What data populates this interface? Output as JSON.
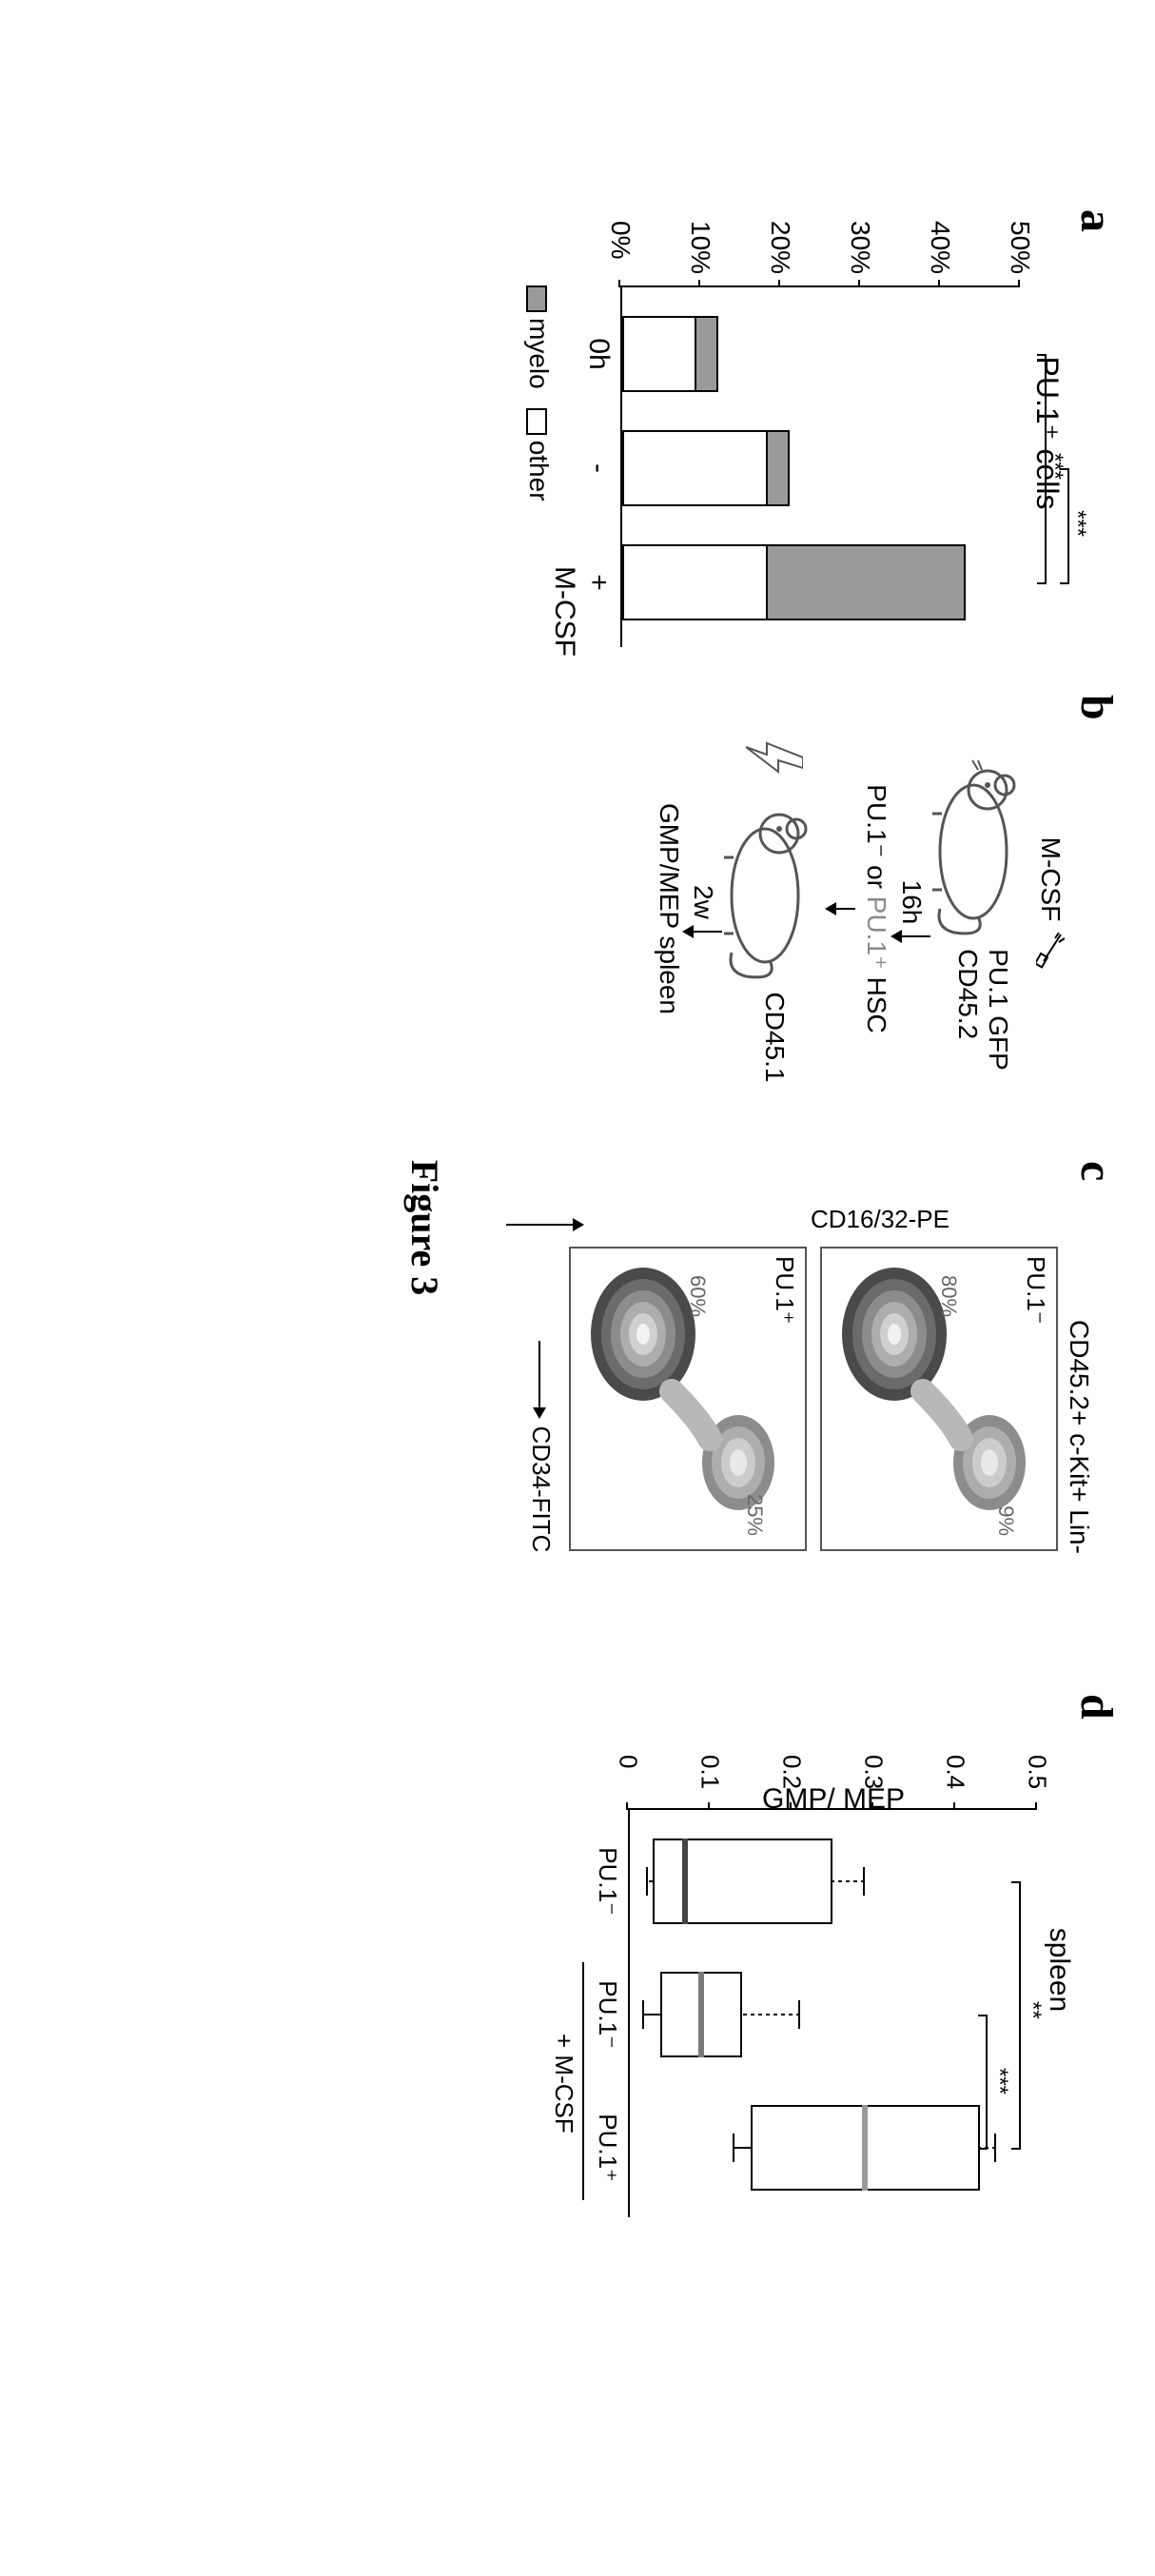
{
  "caption": "Figure 3",
  "panels": {
    "a": {
      "letter": "a",
      "title": "PU.1⁺ cells",
      "y_ticks": [
        "0%",
        "10%",
        "20%",
        "30%",
        "40%",
        "50%"
      ],
      "y_max_pct": 50,
      "bars": [
        {
          "x_label": "0h",
          "myelo_pct": 3,
          "other_pct": 9
        },
        {
          "x_label": "-",
          "myelo_pct": 3,
          "other_pct": 18
        },
        {
          "x_label": "+",
          "myelo_pct": 25,
          "other_pct": 18
        }
      ],
      "x_axis_label": "M-CSF",
      "sig": [
        {
          "from": 0,
          "to": 2,
          "text": "***"
        },
        {
          "from": 1,
          "to": 2,
          "text": "***"
        }
      ],
      "legend": [
        {
          "label": "myelo",
          "color": "#9a9a9a"
        },
        {
          "label": "other",
          "color": "#ffffff"
        }
      ]
    },
    "b": {
      "letter": "b",
      "mcsf_label": "M-CSF",
      "mouse1_labels": [
        "PU.1 GFP",
        "CD45.2"
      ],
      "step1_time": "16h",
      "sorted_label_neg": "PU.1⁻",
      "sorted_label_or": " or ",
      "sorted_label_pos": "PU.1⁺",
      "sorted_label_suffix": " HSC",
      "mouse2_label": "CD45.1",
      "step2_time": "2w",
      "readout": "GMP/MEP spleen"
    },
    "c": {
      "letter": "c",
      "title": "CD45.2+ c-Kit+ Lin-",
      "plots": [
        {
          "tag": "PU.1⁻",
          "mep_pct": "80%",
          "gmp_pct": "9%"
        },
        {
          "tag": "PU.1⁺",
          "mep_pct": "60%",
          "gmp_pct": "25%"
        }
      ],
      "y_axis": "CD16/32-PE",
      "x_axis": "CD34-FITC"
    },
    "d": {
      "letter": "d",
      "title": "spleen",
      "y_label": "GMP/ MEP",
      "y_ticks": [
        "0",
        "0.1",
        "0.2",
        "0.3",
        "0.4",
        "0.5"
      ],
      "y_max": 0.5,
      "boxes": [
        {
          "x_label": "PU.1⁻",
          "q1": 0.03,
          "median": 0.07,
          "q3": 0.25,
          "wlow": 0.025,
          "whigh": 0.29,
          "median_color": "#444444"
        },
        {
          "x_label": "PU.1⁻",
          "q1": 0.04,
          "median": 0.09,
          "q3": 0.14,
          "wlow": 0.02,
          "whigh": 0.21,
          "median_color": "#7a7a7a"
        },
        {
          "x_label": "PU.1⁺",
          "q1": 0.15,
          "median": 0.29,
          "q3": 0.43,
          "wlow": 0.13,
          "whigh": 0.45,
          "median_color": "#9a9a9a"
        }
      ],
      "group_label": "+ M-CSF",
      "sig": [
        {
          "from": 0,
          "to": 2,
          "text": "**",
          "y": 0.48
        },
        {
          "from": 1,
          "to": 2,
          "text": "***",
          "y": 0.44
        }
      ]
    }
  },
  "colors": {
    "myelo": "#9a9a9a",
    "other": "#ffffff",
    "axis": "#000000",
    "pos_text": "#8a8a8a"
  }
}
